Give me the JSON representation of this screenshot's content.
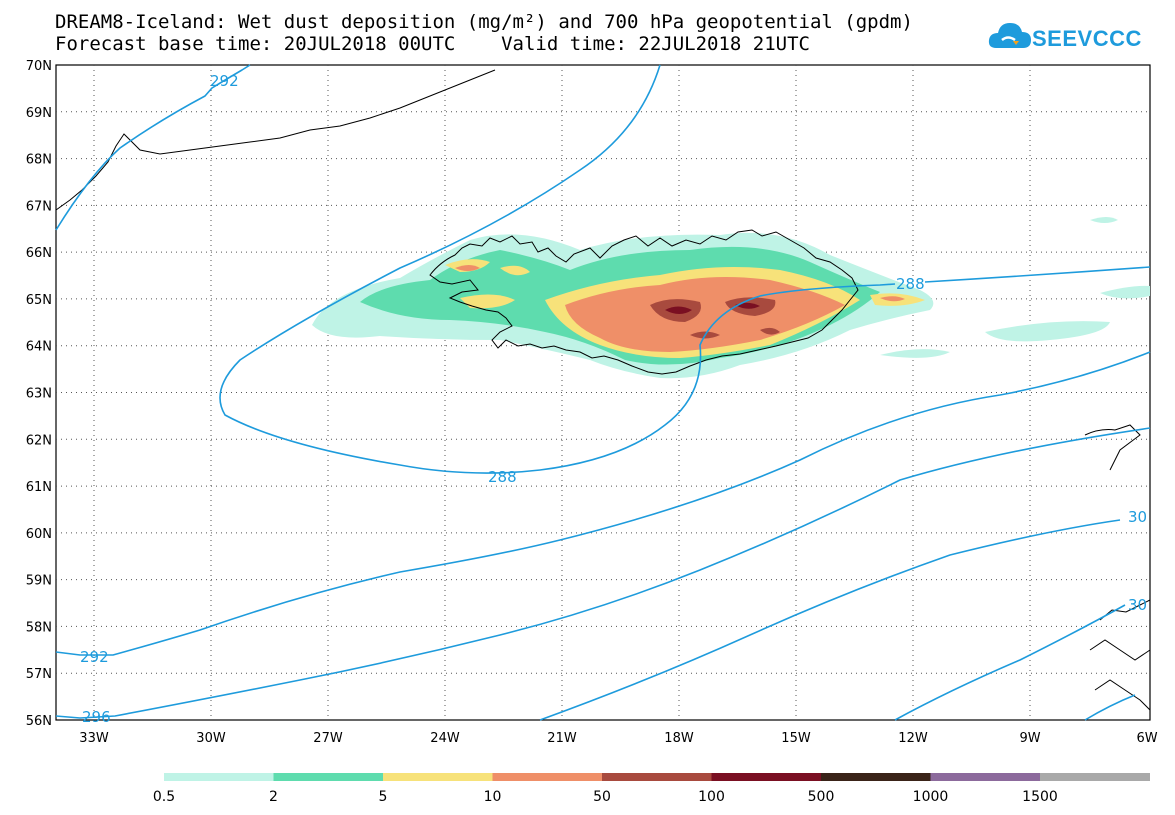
{
  "title": {
    "line1": "DREAM8-Iceland: Wet dust deposition (mg/m²) and 700 hPa geopotential (gpdm)",
    "line2": "Forecast base time: 20JUL2018 00UTC    Valid time: 22JUL2018 21UTC"
  },
  "logo": {
    "text": "SEEVCCC",
    "icon": "cloud-icon"
  },
  "map": {
    "lat_labels": [
      "70N",
      "69N",
      "68N",
      "67N",
      "66N",
      "65N",
      "64N",
      "63N",
      "62N",
      "61N",
      "60N",
      "59N",
      "58N",
      "57N",
      "56N"
    ],
    "lon_labels": [
      "33W",
      "30W",
      "27W",
      "24W",
      "21W",
      "18W",
      "15W",
      "12W",
      "9W",
      "6W"
    ],
    "gridlines": "dotted",
    "contour_color": "#1e9bdc",
    "contour_labels": [
      "292",
      "288",
      "288",
      "292",
      "296",
      "30",
      "30"
    ]
  },
  "colorbar": {
    "labels": [
      "0.5",
      "2",
      "5",
      "10",
      "50",
      "100",
      "500",
      "1000",
      "1500"
    ],
    "colors": [
      "#bff3e6",
      "#5edcae",
      "#f7e27a",
      "#ef8f68",
      "#a84a3e",
      "#7a0f22",
      "#3a2318",
      "#8c6a9c",
      "#a9a9a9"
    ]
  }
}
